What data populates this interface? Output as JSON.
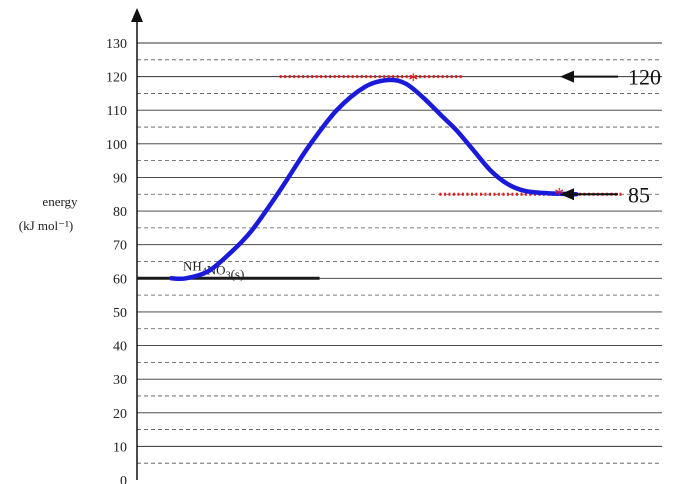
{
  "chart_data": {
    "type": "line",
    "ylabel": "energy",
    "yunit": "(kJ mol⁻¹)",
    "ylim": [
      0,
      130
    ],
    "yticks": [
      0,
      10,
      20,
      30,
      40,
      50,
      60,
      70,
      80,
      90,
      100,
      110,
      120,
      130
    ],
    "grid": true,
    "series": [
      {
        "color": "#1a1adb",
        "points": [
          [
            0.3,
            60
          ],
          [
            0.43,
            60
          ],
          [
            0.62,
            62
          ],
          [
            0.8,
            67
          ],
          [
            1.0,
            74
          ],
          [
            1.25,
            86
          ],
          [
            1.5,
            99
          ],
          [
            1.75,
            110
          ],
          [
            2.0,
            117
          ],
          [
            2.2,
            119
          ],
          [
            2.35,
            118
          ],
          [
            2.5,
            114
          ],
          [
            2.68,
            108
          ],
          [
            2.8,
            104
          ],
          [
            2.95,
            98
          ],
          [
            3.1,
            92
          ],
          [
            3.25,
            88
          ],
          [
            3.4,
            86
          ],
          [
            3.6,
            85.3
          ],
          [
            3.85,
            85
          ]
        ]
      }
    ],
    "levels": [
      {
        "label": "NH₄NO₃(s)",
        "value": 60,
        "color": "#1b1b1b",
        "x": [
          0,
          1.6
        ]
      },
      {
        "value": 120,
        "color": "#e3191c",
        "dotted": true,
        "x": [
          1.25,
          2.85
        ]
      },
      {
        "value": 85,
        "color": "#e3191c",
        "dotted": true,
        "x": [
          2.65,
          4.25
        ]
      }
    ],
    "stars": [
      {
        "text": "*",
        "x": 2.42,
        "y": 120
      },
      {
        "text": "*",
        "x": 3.7,
        "y": 86
      }
    ],
    "annotations": [
      {
        "text": "120",
        "value": 120
      },
      {
        "text": "85",
        "value": 85
      }
    ]
  }
}
